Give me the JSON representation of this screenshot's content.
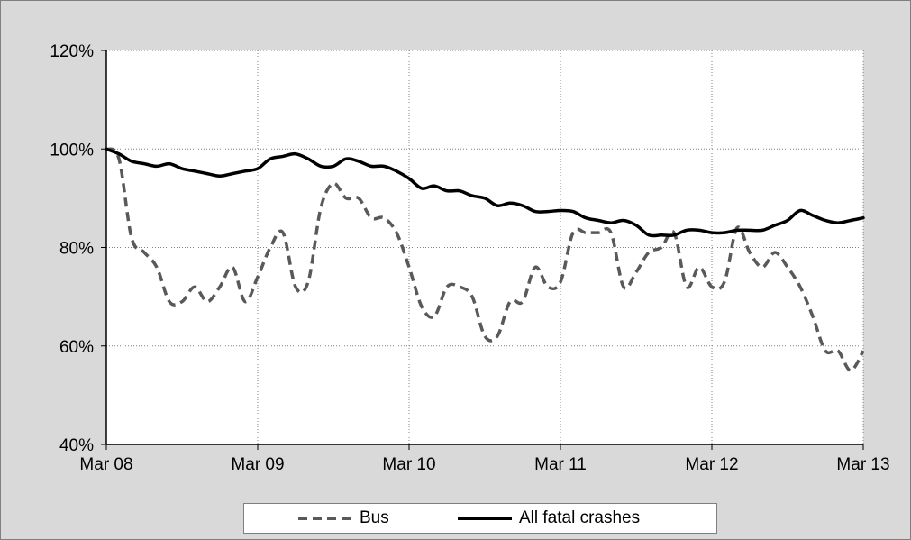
{
  "chart_data": {
    "type": "line",
    "title": "",
    "xlabel": "",
    "ylabel": "",
    "x_tick_labels": [
      "Mar 08",
      "Mar 09",
      "Mar 10",
      "Mar 11",
      "Mar 12",
      "Mar 13"
    ],
    "y_tick_labels": [
      "40%",
      "60%",
      "80%",
      "100%",
      "120%"
    ],
    "ylim": [
      40,
      120
    ],
    "y_unit": "percent",
    "grid": "vertical and horizontal dotted gridlines",
    "legend_position": "bottom",
    "x": [
      "Mar 08",
      "Apr 08",
      "May 08",
      "Jun 08",
      "Jul 08",
      "Aug 08",
      "Sep 08",
      "Oct 08",
      "Nov 08",
      "Dec 08",
      "Jan 09",
      "Feb 09",
      "Mar 09",
      "Apr 09",
      "May 09",
      "Jun 09",
      "Jul 09",
      "Aug 09",
      "Sep 09",
      "Oct 09",
      "Nov 09",
      "Dec 09",
      "Jan 10",
      "Feb 10",
      "Mar 10",
      "Apr 10",
      "May 10",
      "Jun 10",
      "Jul 10",
      "Aug 10",
      "Sep 10",
      "Oct 10",
      "Nov 10",
      "Dec 10",
      "Jan 11",
      "Feb 11",
      "Mar 11",
      "Apr 11",
      "May 11",
      "Jun 11",
      "Jul 11",
      "Aug 11",
      "Sep 11",
      "Oct 11",
      "Nov 11",
      "Dec 11",
      "Jan 12",
      "Feb 12",
      "Mar 12",
      "Apr 12",
      "May 12",
      "Jun 12",
      "Jul 12",
      "Aug 12",
      "Sep 12",
      "Oct 12",
      "Nov 12",
      "Dec 12",
      "Jan 13",
      "Feb 13",
      "Mar 13"
    ],
    "series": [
      {
        "name": "Bus",
        "style": "dashed",
        "color": "#595959",
        "values": [
          100,
          98,
          82,
          79,
          76,
          69,
          69,
          72,
          69,
          72,
          76,
          69,
          74,
          80,
          83,
          72,
          73,
          88,
          93,
          90,
          90,
          86,
          86,
          83,
          76,
          68,
          66,
          72,
          72,
          70,
          62,
          62,
          69,
          69,
          76,
          72,
          73,
          83,
          83,
          83,
          83,
          72,
          75,
          79,
          80,
          83,
          72,
          76,
          72,
          73,
          84,
          79,
          76,
          79,
          76,
          72,
          66,
          59,
          59,
          55,
          59
        ]
      },
      {
        "name": "All fatal crashes",
        "style": "solid",
        "color": "#000000",
        "values": [
          100,
          99,
          97.5,
          97,
          96.5,
          97,
          96,
          95.5,
          95,
          94.5,
          95,
          95.5,
          96,
          98,
          98.5,
          99,
          98,
          96.5,
          96.5,
          98,
          97.5,
          96.5,
          96.5,
          95.5,
          94,
          92,
          92.5,
          91.5,
          91.5,
          90.5,
          90,
          88.5,
          89,
          88.5,
          87.3,
          87.3,
          87.5,
          87.3,
          86,
          85.5,
          85,
          85.5,
          84.5,
          82.5,
          82.5,
          82.5,
          83.5,
          83.5,
          83,
          83,
          83.5,
          83.5,
          83.5,
          84.5,
          85.5,
          87.5,
          86.5,
          85.5,
          85,
          85.5,
          86
        ]
      }
    ]
  }
}
